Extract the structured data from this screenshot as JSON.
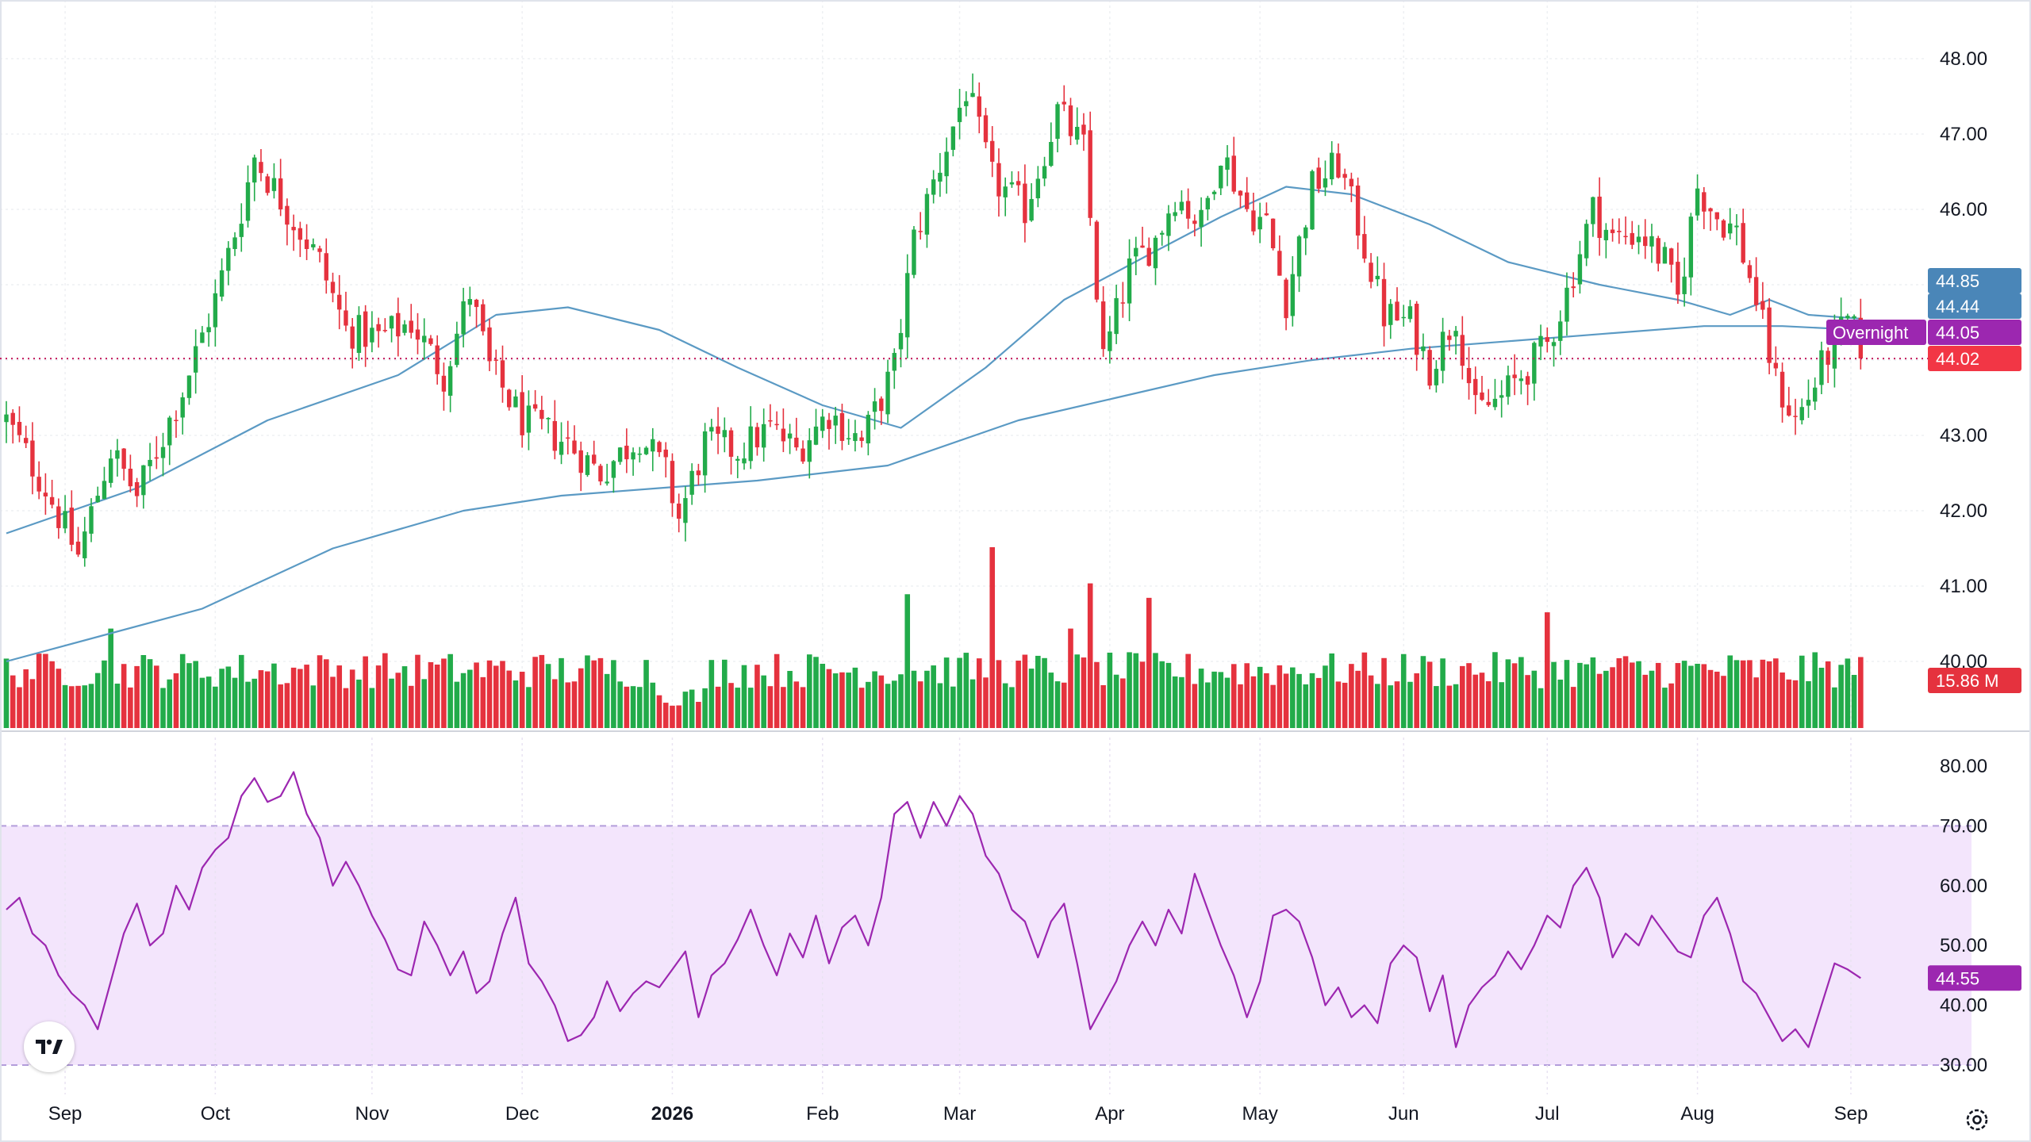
{
  "chart_data": [
    {
      "type": "candlestick",
      "panel": "price",
      "y_ticks": [
        "48.00",
        "47.00",
        "46.00",
        "45.00",
        "44.00",
        "43.00",
        "42.00",
        "41.00",
        "40.00"
      ],
      "ylim": [
        39.0,
        48.5
      ],
      "reference_line": 44.02,
      "price_tags": [
        {
          "value": 44.85,
          "text": "44.85",
          "color": "#4a86b8"
        },
        {
          "value": 44.44,
          "text": "44.44",
          "color": "#4a86b8"
        },
        {
          "value": 44.05,
          "text": "44.05",
          "label": "Overnight",
          "color": "#9c27b0"
        },
        {
          "value": 44.02,
          "text": "44.02",
          "color": "#f23645"
        }
      ],
      "anchors": [
        [
          0,
          43.2
        ],
        [
          6,
          42.3
        ],
        [
          11,
          41.4
        ],
        [
          16,
          42.8
        ],
        [
          20,
          42.2
        ],
        [
          27,
          43.6
        ],
        [
          32,
          44.8
        ],
        [
          36,
          46.0
        ],
        [
          38,
          46.7
        ],
        [
          43,
          46.0
        ],
        [
          48,
          45.3
        ],
        [
          52,
          44.4
        ],
        [
          57,
          44.3
        ],
        [
          62,
          44.5
        ],
        [
          67,
          43.8
        ],
        [
          71,
          44.9
        ],
        [
          74,
          43.9
        ],
        [
          79,
          43.2
        ],
        [
          86,
          42.9
        ],
        [
          91,
          42.5
        ],
        [
          97,
          43.0
        ],
        [
          101,
          42.5
        ],
        [
          103,
          41.9
        ],
        [
          107,
          42.9
        ],
        [
          112,
          42.8
        ],
        [
          117,
          43.1
        ],
        [
          121,
          42.8
        ],
        [
          126,
          43.3
        ],
        [
          131,
          42.9
        ],
        [
          136,
          43.9
        ],
        [
          139,
          45.6
        ],
        [
          143,
          46.6
        ],
        [
          147,
          47.6
        ],
        [
          151,
          46.4
        ],
        [
          156,
          46.0
        ],
        [
          161,
          47.3
        ],
        [
          165,
          46.8
        ],
        [
          168,
          44.0
        ],
        [
          172,
          45.2
        ],
        [
          176,
          45.6
        ],
        [
          179,
          46.2
        ],
        [
          183,
          45.8
        ],
        [
          186,
          46.8
        ],
        [
          190,
          46.0
        ],
        [
          193,
          45.8
        ],
        [
          196,
          44.8
        ],
        [
          200,
          46.3
        ],
        [
          204,
          46.6
        ],
        [
          207,
          45.8
        ],
        [
          211,
          44.6
        ],
        [
          215,
          44.5
        ],
        [
          218,
          43.9
        ],
        [
          222,
          44.6
        ],
        [
          225,
          43.3
        ],
        [
          229,
          43.5
        ],
        [
          232,
          43.8
        ],
        [
          236,
          44.2
        ],
        [
          239,
          44.9
        ],
        [
          243,
          46.0
        ],
        [
          246,
          45.6
        ],
        [
          250,
          45.7
        ],
        [
          254,
          45.3
        ],
        [
          256,
          44.8
        ],
        [
          259,
          46.3
        ],
        [
          262,
          45.9
        ],
        [
          265,
          45.7
        ],
        [
          268,
          44.8
        ],
        [
          271,
          43.7
        ],
        [
          274,
          43.2
        ],
        [
          276,
          43.5
        ],
        [
          279,
          44.1
        ],
        [
          282,
          44.5
        ],
        [
          284,
          44.2
        ]
      ],
      "candle_count": 285,
      "ma_short": [
        [
          0,
          41.7
        ],
        [
          20,
          42.3
        ],
        [
          40,
          43.2
        ],
        [
          60,
          43.8
        ],
        [
          75,
          44.6
        ],
        [
          86,
          44.7
        ],
        [
          100,
          44.4
        ],
        [
          112,
          43.9
        ],
        [
          125,
          43.4
        ],
        [
          137,
          43.1
        ],
        [
          150,
          43.9
        ],
        [
          162,
          44.8
        ],
        [
          175,
          45.4
        ],
        [
          186,
          45.9
        ],
        [
          196,
          46.3
        ],
        [
          206,
          46.2
        ],
        [
          218,
          45.8
        ],
        [
          230,
          45.3
        ],
        [
          244,
          45.0
        ],
        [
          256,
          44.8
        ],
        [
          264,
          44.6
        ],
        [
          270,
          44.8
        ],
        [
          276,
          44.6
        ],
        [
          284,
          44.55
        ]
      ],
      "ma_long": [
        [
          0,
          40.0
        ],
        [
          30,
          40.7
        ],
        [
          50,
          41.5
        ],
        [
          70,
          42.0
        ],
        [
          85,
          42.2
        ],
        [
          100,
          42.3
        ],
        [
          115,
          42.4
        ],
        [
          135,
          42.6
        ],
        [
          155,
          43.2
        ],
        [
          170,
          43.5
        ],
        [
          185,
          43.8
        ],
        [
          200,
          44.0
        ],
        [
          215,
          44.15
        ],
        [
          230,
          44.25
        ],
        [
          245,
          44.35
        ],
        [
          260,
          44.45
        ],
        [
          272,
          44.45
        ],
        [
          284,
          44.4
        ]
      ],
      "colors": {
        "up": "#22ab4a",
        "down": "#e5323e",
        "ma_short": "#5b9ac4",
        "ma_long": "#5b9ac4",
        "reference": "#c2185b"
      }
    },
    {
      "type": "bar",
      "panel": "volume",
      "last_value_text": "15.86 M",
      "spikes": [
        {
          "index": 151,
          "height": 1.0
        },
        {
          "index": 138,
          "height": 0.74
        },
        {
          "index": 166,
          "height": 0.8
        },
        {
          "index": 175,
          "height": 0.72
        },
        {
          "index": 236,
          "height": 0.64
        },
        {
          "index": 16,
          "height": 0.55
        },
        {
          "index": 163,
          "height": 0.55
        }
      ],
      "colors": {
        "up": "#22ab4a",
        "down": "#e5323e"
      }
    },
    {
      "type": "line",
      "panel": "rsi",
      "y_ticks": [
        "80.00",
        "70.00",
        "60.00",
        "50.00",
        "40.00",
        "30.00"
      ],
      "ylim": [
        28,
        82
      ],
      "band": [
        30,
        70
      ],
      "last_value": 44.55,
      "last_value_text": "44.55",
      "points": [
        [
          0,
          56
        ],
        [
          2,
          58
        ],
        [
          4,
          52
        ],
        [
          6,
          50
        ],
        [
          8,
          45
        ],
        [
          10,
          42
        ],
        [
          12,
          40
        ],
        [
          14,
          36
        ],
        [
          16,
          44
        ],
        [
          18,
          52
        ],
        [
          20,
          57
        ],
        [
          22,
          50
        ],
        [
          24,
          52
        ],
        [
          26,
          60
        ],
        [
          28,
          56
        ],
        [
          30,
          63
        ],
        [
          32,
          66
        ],
        [
          34,
          68
        ],
        [
          36,
          75
        ],
        [
          38,
          78
        ],
        [
          40,
          74
        ],
        [
          42,
          75
        ],
        [
          44,
          79
        ],
        [
          46,
          72
        ],
        [
          48,
          68
        ],
        [
          50,
          60
        ],
        [
          52,
          64
        ],
        [
          54,
          60
        ],
        [
          56,
          55
        ],
        [
          58,
          51
        ],
        [
          60,
          46
        ],
        [
          62,
          45
        ],
        [
          64,
          54
        ],
        [
          66,
          50
        ],
        [
          68,
          45
        ],
        [
          70,
          49
        ],
        [
          72,
          42
        ],
        [
          74,
          44
        ],
        [
          76,
          52
        ],
        [
          78,
          58
        ],
        [
          80,
          47
        ],
        [
          82,
          44
        ],
        [
          84,
          40
        ],
        [
          86,
          34
        ],
        [
          88,
          35
        ],
        [
          90,
          38
        ],
        [
          92,
          44
        ],
        [
          94,
          39
        ],
        [
          96,
          42
        ],
        [
          98,
          44
        ],
        [
          100,
          43
        ],
        [
          102,
          46
        ],
        [
          104,
          49
        ],
        [
          106,
          38
        ],
        [
          108,
          45
        ],
        [
          110,
          47
        ],
        [
          112,
          51
        ],
        [
          114,
          56
        ],
        [
          116,
          50
        ],
        [
          118,
          45
        ],
        [
          120,
          52
        ],
        [
          122,
          48
        ],
        [
          124,
          55
        ],
        [
          126,
          47
        ],
        [
          128,
          53
        ],
        [
          130,
          55
        ],
        [
          132,
          50
        ],
        [
          134,
          58
        ],
        [
          136,
          72
        ],
        [
          138,
          74
        ],
        [
          140,
          68
        ],
        [
          142,
          74
        ],
        [
          144,
          70
        ],
        [
          146,
          75
        ],
        [
          148,
          72
        ],
        [
          150,
          65
        ],
        [
          152,
          62
        ],
        [
          154,
          56
        ],
        [
          156,
          54
        ],
        [
          158,
          48
        ],
        [
          160,
          54
        ],
        [
          162,
          57
        ],
        [
          164,
          47
        ],
        [
          166,
          36
        ],
        [
          168,
          40
        ],
        [
          170,
          44
        ],
        [
          172,
          50
        ],
        [
          174,
          54
        ],
        [
          176,
          50
        ],
        [
          178,
          56
        ],
        [
          180,
          52
        ],
        [
          182,
          62
        ],
        [
          184,
          56
        ],
        [
          186,
          50
        ],
        [
          188,
          45
        ],
        [
          190,
          38
        ],
        [
          192,
          44
        ],
        [
          194,
          55
        ],
        [
          196,
          56
        ],
        [
          198,
          54
        ],
        [
          200,
          48
        ],
        [
          202,
          40
        ],
        [
          204,
          43
        ],
        [
          206,
          38
        ],
        [
          208,
          40
        ],
        [
          210,
          37
        ],
        [
          212,
          47
        ],
        [
          214,
          50
        ],
        [
          216,
          48
        ],
        [
          218,
          39
        ],
        [
          220,
          45
        ],
        [
          222,
          33
        ],
        [
          224,
          40
        ],
        [
          226,
          43
        ],
        [
          228,
          45
        ],
        [
          230,
          49
        ],
        [
          232,
          46
        ],
        [
          234,
          50
        ],
        [
          236,
          55
        ],
        [
          238,
          53
        ],
        [
          240,
          60
        ],
        [
          242,
          63
        ],
        [
          244,
          58
        ],
        [
          246,
          48
        ],
        [
          248,
          52
        ],
        [
          250,
          50
        ],
        [
          252,
          55
        ],
        [
          254,
          52
        ],
        [
          256,
          49
        ],
        [
          258,
          48
        ],
        [
          260,
          55
        ],
        [
          262,
          58
        ],
        [
          264,
          52
        ],
        [
          266,
          44
        ],
        [
          268,
          42
        ],
        [
          270,
          38
        ],
        [
          272,
          34
        ],
        [
          274,
          36
        ],
        [
          276,
          33
        ],
        [
          278,
          40
        ],
        [
          280,
          47
        ],
        [
          282,
          46
        ],
        [
          284,
          44.55
        ]
      ],
      "colors": {
        "line": "#9c27b0",
        "band_fill": "#f3e5fc",
        "band_border": "#b39ddb"
      }
    }
  ],
  "time_axis": [
    {
      "label": "Sep",
      "index": 9,
      "bold": false
    },
    {
      "label": "Oct",
      "index": 32,
      "bold": false
    },
    {
      "label": "Nov",
      "index": 56,
      "bold": false
    },
    {
      "label": "Dec",
      "index": 79,
      "bold": false
    },
    {
      "label": "2026",
      "index": 102,
      "bold": true
    },
    {
      "label": "Feb",
      "index": 125,
      "bold": false
    },
    {
      "label": "Mar",
      "index": 146,
      "bold": false
    },
    {
      "label": "Apr",
      "index": 169,
      "bold": false
    },
    {
      "label": "May",
      "index": 192,
      "bold": false
    },
    {
      "label": "Jun",
      "index": 214,
      "bold": false
    },
    {
      "label": "Jul",
      "index": 236,
      "bold": false
    },
    {
      "label": "Aug",
      "index": 259,
      "bold": false
    },
    {
      "label": "Sep",
      "index": 282.5,
      "bold": false
    }
  ],
  "icons": {
    "logo": "tradingview-logo-icon",
    "settings": "settings-gear-icon"
  }
}
